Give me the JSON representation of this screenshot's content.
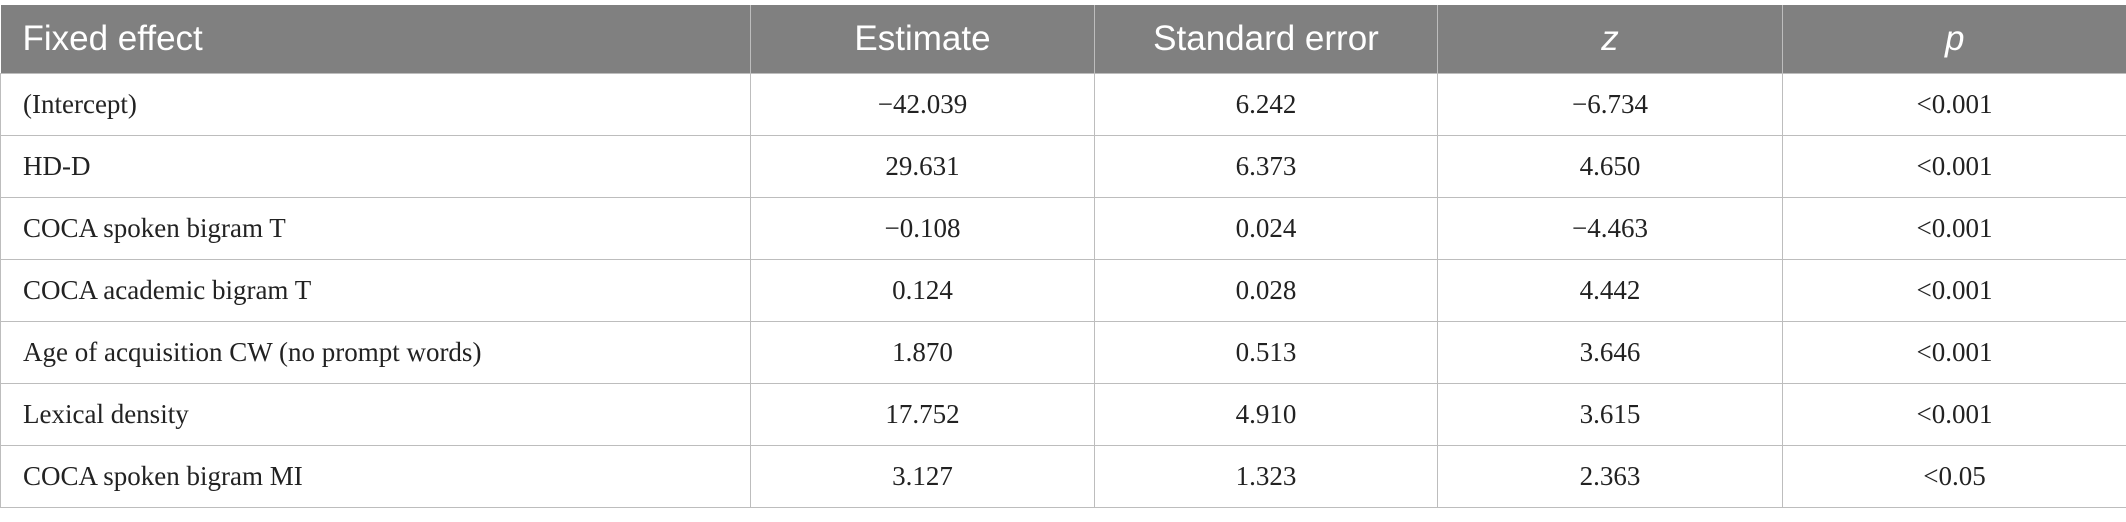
{
  "table": {
    "header": [
      "Fixed effect",
      "Estimate",
      "Standard error",
      "z",
      "p"
    ],
    "rows": [
      [
        "(Intercept)",
        "−42.039",
        "6.242",
        "−6.734",
        "<0.001"
      ],
      [
        "HD-D",
        "29.631",
        "6.373",
        "4.650",
        "<0.001"
      ],
      [
        "COCA spoken bigram T",
        "−0.108",
        "0.024",
        "−4.463",
        "<0.001"
      ],
      [
        "COCA academic bigram T",
        "0.124",
        "0.028",
        "4.442",
        "<0.001"
      ],
      [
        "Age of acquisition CW (no prompt words)",
        "1.870",
        "0.513",
        "3.646",
        "<0.001"
      ],
      [
        "Lexical density",
        "17.752",
        "4.910",
        "3.615",
        "<0.001"
      ],
      [
        "COCA spoken bigram MI",
        "3.127",
        "1.323",
        "2.363",
        "<0.05"
      ]
    ]
  }
}
